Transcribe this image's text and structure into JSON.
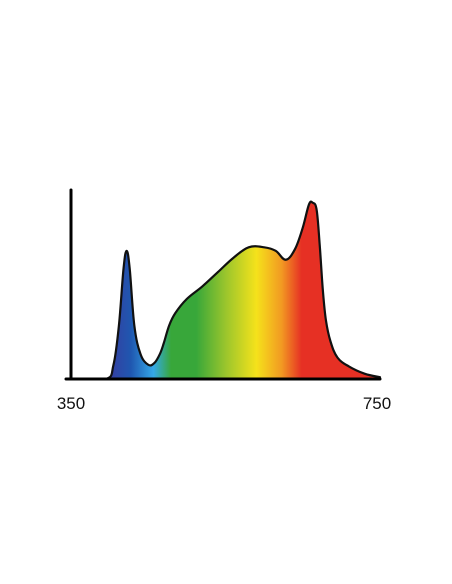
{
  "chart_data": {
    "type": "area",
    "title": "",
    "xlabel": "",
    "ylabel": "",
    "xlim": [
      350,
      750
    ],
    "ylim": [
      0,
      1
    ],
    "grid": false,
    "legend": "none",
    "x_tick_labels": [
      "350",
      "750"
    ],
    "series": [
      {
        "x": [
          350,
          395,
          405,
          412,
          418,
          422,
          426,
          432,
          440,
          450,
          458,
          465,
          470,
          477,
          485,
          500,
          520,
          540,
          560,
          580,
          600,
          615,
          628,
          640,
          650,
          658,
          663,
          668,
          672,
          676,
          680,
          686,
          695,
          710,
          730,
          750
        ],
        "y": [
          0.0,
          0.0,
          0.08,
          0.3,
          0.62,
          0.72,
          0.62,
          0.3,
          0.14,
          0.08,
          0.09,
          0.14,
          0.2,
          0.3,
          0.37,
          0.45,
          0.52,
          0.6,
          0.68,
          0.74,
          0.74,
          0.72,
          0.67,
          0.73,
          0.85,
          0.98,
          0.99,
          0.95,
          0.75,
          0.5,
          0.33,
          0.21,
          0.12,
          0.07,
          0.03,
          0.01
        ]
      }
    ],
    "colors": {
      "violet": "#3a3a9e",
      "blue": "#1f57b0",
      "cyan": "#35a8e8",
      "green": "#38a73a",
      "lime": "#9cc62c",
      "yellow": "#f5e21b",
      "orange": "#f29a22",
      "red": "#e63024",
      "axis": "#000000",
      "outline": "#111111"
    }
  }
}
